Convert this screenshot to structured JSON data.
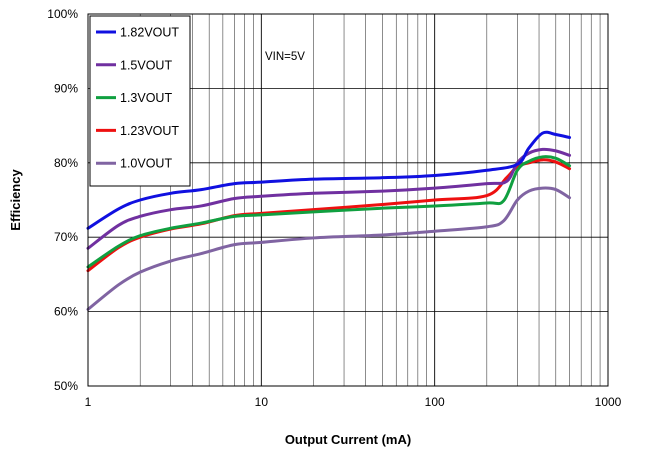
{
  "chart_data": {
    "type": "line",
    "title": "",
    "xlabel": "Output Current (mA)",
    "ylabel": "Efficiency",
    "x_scale": "log",
    "xlim": [
      1,
      1000
    ],
    "ylim": [
      50,
      100
    ],
    "x_ticks": [
      "1",
      "10",
      "100",
      "1000"
    ],
    "y_ticks": [
      "50%",
      "60%",
      "70%",
      "80%",
      "90%",
      "100%"
    ],
    "grid": true,
    "legend_position": "top-left",
    "annotation": "VIN=5V",
    "series": [
      {
        "name": "1.82VOUT",
        "color": "#1010e0",
        "x": [
          1,
          1.5,
          2,
          3,
          4.5,
          7,
          10,
          20,
          50,
          100,
          200,
          300,
          350,
          420,
          500,
          600
        ],
        "y": [
          71.2,
          73.8,
          75.0,
          75.9,
          76.4,
          77.2,
          77.4,
          77.8,
          78.0,
          78.3,
          79.0,
          79.8,
          82.0,
          84.0,
          83.8,
          83.4
        ]
      },
      {
        "name": "1.5VOUT",
        "color": "#7030a0",
        "x": [
          1,
          1.5,
          2,
          3,
          4.5,
          7,
          10,
          20,
          50,
          100,
          200,
          260,
          300,
          350,
          420,
          500,
          600
        ],
        "y": [
          68.5,
          71.6,
          72.8,
          73.7,
          74.2,
          75.2,
          75.5,
          75.9,
          76.2,
          76.6,
          77.2,
          77.5,
          80.0,
          81.3,
          81.8,
          81.6,
          81.0
        ]
      },
      {
        "name": "1.3VOUT",
        "color": "#10a040",
        "x": [
          1,
          1.5,
          2,
          3,
          4.5,
          7,
          10,
          20,
          50,
          100,
          200,
          250,
          300,
          350,
          420,
          500,
          600
        ],
        "y": [
          66.0,
          68.8,
          70.2,
          71.2,
          71.9,
          72.8,
          73.0,
          73.4,
          73.9,
          74.2,
          74.6,
          74.9,
          79.0,
          80.2,
          80.8,
          80.6,
          79.6
        ]
      },
      {
        "name": "1.23VOUT",
        "color": "#ee1010",
        "x": [
          1,
          1.5,
          2,
          3,
          4.5,
          7,
          10,
          20,
          50,
          100,
          200,
          260,
          300,
          350,
          420,
          500,
          600
        ],
        "y": [
          65.5,
          68.6,
          70.0,
          71.1,
          71.8,
          72.9,
          73.2,
          73.7,
          74.4,
          75.0,
          75.6,
          78.0,
          79.5,
          80.0,
          80.4,
          80.1,
          79.2
        ]
      },
      {
        "name": "1.0VOUT",
        "color": "#8064a2",
        "x": [
          1,
          1.5,
          2,
          3,
          4.5,
          7,
          10,
          20,
          50,
          100,
          200,
          250,
          300,
          350,
          420,
          500,
          600
        ],
        "y": [
          60.3,
          63.6,
          65.3,
          66.8,
          67.8,
          69.0,
          69.3,
          69.9,
          70.3,
          70.8,
          71.4,
          72.2,
          75.0,
          76.2,
          76.6,
          76.4,
          75.3
        ]
      }
    ]
  }
}
